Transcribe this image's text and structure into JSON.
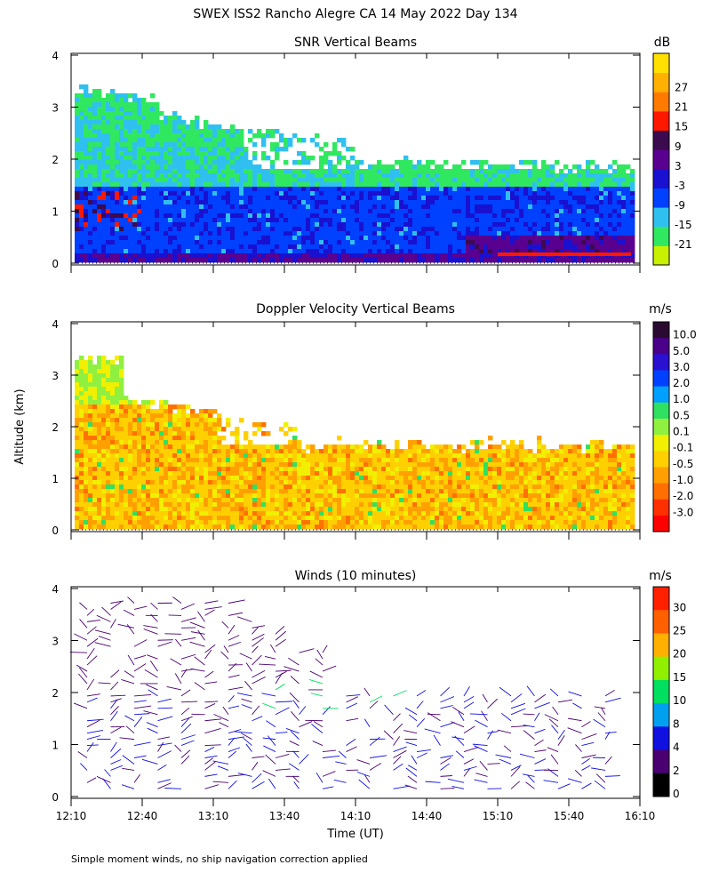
{
  "figure": {
    "title": "SWEX ISS2 Rancho Alegre CA  14 May 2022 Day 134",
    "ylabel": "Altitude (km)",
    "xlabel": "Time (UT)",
    "footnote": "Simple moment winds, no ship navigation correction applied"
  },
  "chart_data": [
    {
      "type": "heatmap",
      "title": "SNR Vertical Beams",
      "unit": "dB",
      "xlim": [
        "12:10",
        "16:10"
      ],
      "ylim": [
        0,
        4
      ],
      "x_ticks": [
        "12:10",
        "12:40",
        "13:10",
        "13:40",
        "14:10",
        "14:40",
        "15:10",
        "15:40",
        "16:10"
      ],
      "y_ticks": [
        "0",
        "1",
        "2",
        "3",
        "4"
      ],
      "colorbar_labels": [
        "-21",
        "-15",
        "-9",
        "-3",
        "3",
        "9",
        "15",
        "21",
        "27"
      ],
      "colors": [
        "#c8f000",
        "#30e860",
        "#30c0f0",
        "#0040ff",
        "#1a10d0",
        "#5a0090",
        "#3c0a4e",
        "#ff1800",
        "#ff7a00",
        "#ffb000",
        "#ffe000"
      ]
    },
    {
      "type": "heatmap",
      "title": "Doppler Velocity Vertical Beams",
      "unit": "m/s",
      "xlim": [
        "12:10",
        "16:10"
      ],
      "ylim": [
        0,
        4
      ],
      "y_ticks": [
        "0",
        "1",
        "2",
        "3",
        "4"
      ],
      "colorbar_labels": [
        "10.0",
        "5.0",
        "3.0",
        "2.0",
        "1.0",
        "0.5",
        "0.1",
        "-0.1",
        "-0.5",
        "-1.0",
        "-2.0",
        "-3.0"
      ],
      "colors": [
        "#2a0a30",
        "#4a0088",
        "#2a10d0",
        "#0040ff",
        "#00a0ff",
        "#30e060",
        "#90f040",
        "#f0f000",
        "#ffd000",
        "#ffa000",
        "#ff7000",
        "#ff3000",
        "#ff0000"
      ]
    },
    {
      "type": "scatter",
      "title": "Winds (10 minutes)",
      "unit": "m/s",
      "xlim": [
        "12:10",
        "16:10"
      ],
      "ylim": [
        0,
        4
      ],
      "y_ticks": [
        "0",
        "1",
        "2",
        "3",
        "4"
      ],
      "colorbar_labels": [
        "30",
        "25",
        "20",
        "15",
        "10",
        "8",
        "4",
        "2",
        "0"
      ],
      "colors": [
        "#ff2000",
        "#ff6000",
        "#ffb000",
        "#90f000",
        "#00e060",
        "#00a0f0",
        "#1010e0",
        "#4a0070",
        "#000000"
      ]
    }
  ]
}
